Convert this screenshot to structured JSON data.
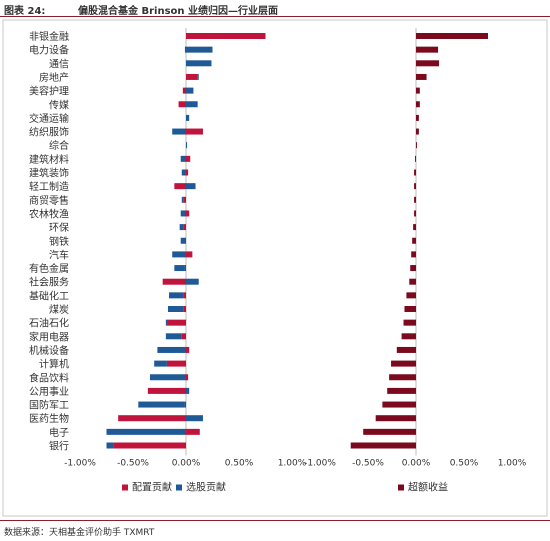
{
  "header": {
    "figure_label": "图表 24:",
    "figure_title": "偏股混合基金 Brinson 业绩归因—行业层面"
  },
  "footer": {
    "source": "数据来源：天相基金评价助手 TXMRT"
  },
  "colors": {
    "allocation": "#c0143c",
    "selection": "#1f5a96",
    "excess": "#7b0a1e",
    "rule": "#8b1e2d"
  },
  "chart_data": [
    {
      "type": "bar",
      "orientation": "horizontal",
      "stacked": true,
      "categories": [
        "非银金融",
        "电力设备",
        "通信",
        "房地产",
        "美容护理",
        "传媒",
        "交通运输",
        "纺织服饰",
        "综合",
        "建筑材料",
        "建筑装饰",
        "轻工制造",
        "商贸零售",
        "农林牧渔",
        "环保",
        "钢铁",
        "汽车",
        "有色金属",
        "社会服务",
        "基础化工",
        "煤炭",
        "石油石化",
        "家用电器",
        "机械设备",
        "计算机",
        "食品饮料",
        "公用事业",
        "国防军工",
        "医药生物",
        "电子",
        "银行"
      ],
      "series": [
        {
          "name": "配置贡献",
          "values": [
            0.75,
            -0.01,
            0.0,
            0.11,
            -0.03,
            -0.07,
            0.0,
            0.16,
            0.0,
            0.04,
            0.02,
            -0.11,
            -0.02,
            0.03,
            -0.02,
            0.0,
            0.06,
            -0.01,
            -0.22,
            -0.02,
            -0.02,
            -0.17,
            -0.04,
            0.03,
            -0.18,
            0.02,
            -0.36,
            -0.01,
            -0.64,
            0.13,
            -0.68
          ]
        },
        {
          "name": "选股贡献",
          "values": [
            0.0,
            0.25,
            0.24,
            0.01,
            0.07,
            0.11,
            0.03,
            -0.13,
            0.01,
            -0.05,
            -0.04,
            0.09,
            -0.02,
            -0.05,
            -0.04,
            -0.05,
            -0.13,
            -0.1,
            0.12,
            -0.14,
            -0.15,
            -0.02,
            -0.15,
            -0.27,
            -0.12,
            -0.34,
            0.03,
            -0.44,
            0.16,
            -0.75,
            -0.07
          ]
        }
      ],
      "xlim": [
        -1.0,
        1.0
      ],
      "xticks": [
        "-1.00%",
        "-0.50%",
        "0.00%",
        "0.50%",
        "1.00%"
      ],
      "legend": [
        "配置贡献",
        "选股贡献"
      ],
      "legend_position": "bottom"
    },
    {
      "type": "bar",
      "orientation": "horizontal",
      "series": [
        {
          "name": "超额收益",
          "values": [
            0.75,
            0.23,
            0.24,
            0.11,
            0.04,
            0.04,
            0.03,
            0.03,
            0.01,
            -0.01,
            -0.02,
            -0.02,
            -0.02,
            -0.02,
            -0.03,
            -0.04,
            -0.05,
            -0.06,
            -0.07,
            -0.1,
            -0.12,
            -0.13,
            -0.15,
            -0.2,
            -0.26,
            -0.28,
            -0.3,
            -0.35,
            -0.42,
            -0.55,
            -0.68
          ]
        }
      ],
      "xlim": [
        -1.0,
        1.0
      ],
      "xticks": [
        "-1.00%",
        "-0.50%",
        "0.00%",
        "0.50%",
        "1.00%"
      ],
      "legend": [
        "超额收益"
      ],
      "legend_position": "bottom"
    }
  ]
}
